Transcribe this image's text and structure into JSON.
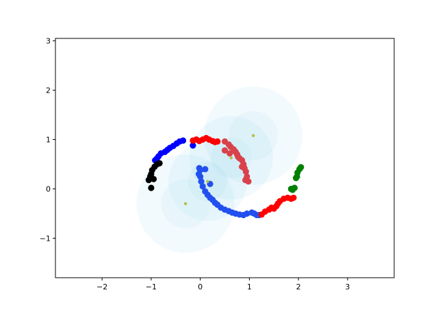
{
  "chart_data": {
    "type": "scatter",
    "title": "",
    "xlabel": "",
    "ylabel": "",
    "xlim": [
      -2.95,
      3.95
    ],
    "ylim": [
      -1.8,
      3.05
    ],
    "grid": false,
    "x_ticks": [
      -2,
      -1,
      0,
      1,
      2,
      3
    ],
    "y_ticks": [
      -1,
      0,
      1,
      2,
      3
    ],
    "x_tick_labels": [
      "−2",
      "−1",
      "0",
      "1",
      "2",
      "3"
    ],
    "y_tick_labels": [
      "−1",
      "0",
      "1",
      "2",
      "3"
    ],
    "circles": [
      {
        "cx": -0.3,
        "cy": -0.3,
        "r": 1.0,
        "inner_r": 0.5
      },
      {
        "cx": 0.15,
        "cy": 0.15,
        "r": 0.8,
        "inner_r": 0.4
      },
      {
        "cx": 0.63,
        "cy": 0.63,
        "r": 0.85,
        "inner_r": 0.42
      },
      {
        "cx": 1.08,
        "cy": 1.08,
        "r": 1.0,
        "inner_r": 0.5
      }
    ],
    "circle_color": "#87ceeb",
    "centers": [
      {
        "x": -0.3,
        "y": -0.3
      },
      {
        "x": 0.15,
        "y": 0.15
      },
      {
        "x": 0.63,
        "y": 0.63
      },
      {
        "x": 1.08,
        "y": 1.08
      }
    ],
    "center_color": "#b5bd48",
    "series": [
      {
        "color": "#0000ff",
        "points": [
          [
            -0.92,
            0.58
          ],
          [
            -0.88,
            0.62
          ],
          [
            -0.85,
            0.66
          ],
          [
            -0.8,
            0.72
          ],
          [
            -0.72,
            0.75
          ],
          [
            -0.67,
            0.79
          ],
          [
            -0.62,
            0.83
          ],
          [
            -0.55,
            0.87
          ],
          [
            -0.48,
            0.92
          ],
          [
            -0.42,
            0.96
          ],
          [
            -0.35,
            0.98
          ],
          [
            -0.15,
            0.88
          ]
        ]
      },
      {
        "color": "#000000",
        "points": [
          [
            -1.05,
            0.18
          ],
          [
            -1.02,
            0.25
          ],
          [
            -1.0,
            0.3
          ],
          [
            -0.98,
            0.38
          ],
          [
            -0.93,
            0.45
          ],
          [
            -0.88,
            0.5
          ],
          [
            -0.83,
            0.52
          ],
          [
            -0.95,
            0.2
          ],
          [
            -1.0,
            0.02
          ]
        ]
      },
      {
        "color": "#ff0000",
        "points": [
          [
            -0.15,
            0.98
          ],
          [
            -0.08,
            1.0
          ],
          [
            -0.02,
            0.97
          ],
          [
            0.05,
            1.0
          ],
          [
            0.12,
            1.03
          ],
          [
            0.18,
            1.0
          ],
          [
            0.25,
            0.97
          ],
          [
            0.3,
            0.95
          ],
          [
            0.35,
            0.96
          ]
        ]
      },
      {
        "color": "#d9424b",
        "points": [
          [
            0.5,
            0.96
          ],
          [
            0.58,
            0.9
          ],
          [
            0.62,
            0.85
          ],
          [
            0.68,
            0.8
          ],
          [
            0.72,
            0.75
          ],
          [
            0.75,
            0.7
          ],
          [
            0.77,
            0.65
          ],
          [
            0.8,
            0.62
          ],
          [
            0.85,
            0.58
          ],
          [
            0.88,
            0.5
          ],
          [
            0.85,
            0.45
          ],
          [
            0.9,
            0.42
          ],
          [
            0.93,
            0.35
          ],
          [
            0.95,
            0.25
          ],
          [
            0.92,
            0.18
          ],
          [
            0.98,
            0.15
          ],
          [
            0.5,
            0.78
          ],
          [
            0.6,
            0.72
          ]
        ]
      },
      {
        "color": "#2250ee",
        "points": [
          [
            -0.02,
            0.42
          ],
          [
            0.0,
            0.38
          ],
          [
            -0.03,
            0.3
          ],
          [
            0.0,
            0.25
          ],
          [
            0.02,
            0.15
          ],
          [
            0.05,
            0.05
          ],
          [
            0.1,
            -0.05
          ],
          [
            0.15,
            -0.12
          ],
          [
            0.2,
            -0.18
          ],
          [
            0.25,
            -0.22
          ],
          [
            0.3,
            -0.28
          ],
          [
            0.35,
            -0.32
          ],
          [
            0.42,
            -0.38
          ],
          [
            0.5,
            -0.42
          ],
          [
            0.58,
            -0.45
          ],
          [
            0.65,
            -0.48
          ],
          [
            0.72,
            -0.5
          ],
          [
            0.8,
            -0.52
          ],
          [
            0.88,
            -0.53
          ],
          [
            0.95,
            -0.5
          ],
          [
            1.05,
            -0.48
          ],
          [
            1.1,
            -0.5
          ],
          [
            1.15,
            -0.53
          ],
          [
            1.2,
            -0.53
          ],
          [
            0.1,
            0.4
          ],
          [
            0.2,
            0.1
          ]
        ]
      },
      {
        "color": "#ff0000",
        "points": [
          [
            1.4,
            -0.42
          ],
          [
            1.45,
            -0.38
          ],
          [
            1.5,
            -0.4
          ],
          [
            1.55,
            -0.35
          ],
          [
            1.58,
            -0.3
          ],
          [
            1.62,
            -0.25
          ],
          [
            1.7,
            -0.2
          ],
          [
            1.78,
            -0.18
          ],
          [
            1.85,
            -0.2
          ],
          [
            1.9,
            -0.18
          ],
          [
            1.25,
            -0.52
          ],
          [
            1.32,
            -0.46
          ]
        ]
      },
      {
        "color": "#008000",
        "points": [
          [
            1.85,
            0.0
          ],
          [
            1.88,
            -0.02
          ],
          [
            1.92,
            0.02
          ],
          [
            1.95,
            0.22
          ],
          [
            1.97,
            0.25
          ],
          [
            1.98,
            0.33
          ],
          [
            2.02,
            0.4
          ],
          [
            2.05,
            0.44
          ]
        ]
      }
    ]
  }
}
